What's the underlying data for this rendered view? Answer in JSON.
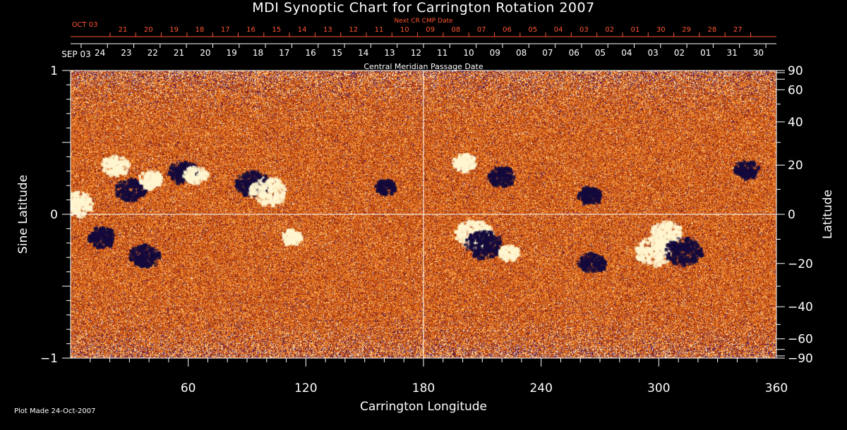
{
  "title": "MDI Synoptic Chart for Carrington Rotation 2007",
  "footer_note": "Plot Made 24-Oct-2007",
  "colors": {
    "background": "#000000",
    "axis": "#ffffff",
    "next_cr_axis": "#ff5533",
    "map_base": "#c2410c",
    "map_positive": "#fff6d0",
    "map_negative": "#140a3c"
  },
  "chart_data": {
    "type": "heatmap",
    "xlabel": "Carrington Longitude",
    "ylabel_left": "Sine Latitude",
    "ylabel_right": "Latitude",
    "xlim": [
      0,
      360
    ],
    "ylim": [
      -1,
      1
    ],
    "x_ticks": [
      "60",
      "120",
      "180",
      "240",
      "300",
      "360"
    ],
    "y_ticks_left": [
      "1",
      "0",
      "−1"
    ],
    "y_ticks_right": [
      "90",
      "60",
      "40",
      "20",
      "0",
      "−20",
      "−40",
      "−60",
      "−90"
    ],
    "top_axis_label": "Central Meridian Passage Date",
    "top_axis_month": "SEP 03",
    "top_axis_dates": [
      "24",
      "23",
      "22",
      "21",
      "20",
      "19",
      "18",
      "17",
      "16",
      "15",
      "14",
      "13",
      "12",
      "11",
      "10",
      "09",
      "08",
      "07",
      "06",
      "05",
      "04",
      "03",
      "02",
      "01",
      "31",
      "30"
    ],
    "next_cr_label": "Next CR CMP Date",
    "next_cr_month": "OCT 03",
    "next_cr_dates": [
      "21",
      "20",
      "19",
      "18",
      "17",
      "16",
      "15",
      "14",
      "13",
      "12",
      "11",
      "10",
      "09",
      "08",
      "07",
      "06",
      "05",
      "04",
      "03",
      "02",
      "01",
      "30",
      "29",
      "28",
      "27"
    ],
    "reference_lines": {
      "longitude": 180,
      "sine_latitude": 0
    },
    "active_regions": [
      {
        "lon": 2,
        "sinlat": 0.08,
        "polarity": "positive",
        "strength": 0.9
      },
      {
        "lon": 15,
        "sinlat": -0.15,
        "polarity": "negative",
        "strength": 0.7
      },
      {
        "lon": 22,
        "sinlat": 0.35,
        "polarity": "positive",
        "strength": 0.7
      },
      {
        "lon": 30,
        "sinlat": 0.18,
        "polarity": "negative",
        "strength": 0.8
      },
      {
        "lon": 37,
        "sinlat": -0.28,
        "polarity": "negative",
        "strength": 0.8
      },
      {
        "lon": 40,
        "sinlat": 0.25,
        "polarity": "positive",
        "strength": 0.6
      },
      {
        "lon": 57,
        "sinlat": 0.3,
        "polarity": "negative",
        "strength": 0.8
      },
      {
        "lon": 63,
        "sinlat": 0.28,
        "polarity": "positive",
        "strength": 0.6
      },
      {
        "lon": 92,
        "sinlat": 0.22,
        "polarity": "negative",
        "strength": 0.9
      },
      {
        "lon": 100,
        "sinlat": 0.17,
        "polarity": "positive",
        "strength": 1.0
      },
      {
        "lon": 112,
        "sinlat": -0.15,
        "polarity": "positive",
        "strength": 0.5
      },
      {
        "lon": 160,
        "sinlat": 0.2,
        "polarity": "negative",
        "strength": 0.5
      },
      {
        "lon": 200,
        "sinlat": 0.37,
        "polarity": "positive",
        "strength": 0.6
      },
      {
        "lon": 205,
        "sinlat": -0.13,
        "polarity": "positive",
        "strength": 1.0
      },
      {
        "lon": 210,
        "sinlat": -0.2,
        "polarity": "negative",
        "strength": 1.0
      },
      {
        "lon": 219,
        "sinlat": 0.27,
        "polarity": "negative",
        "strength": 0.7
      },
      {
        "lon": 223,
        "sinlat": -0.26,
        "polarity": "positive",
        "strength": 0.5
      },
      {
        "lon": 264,
        "sinlat": 0.14,
        "polarity": "negative",
        "strength": 0.6
      },
      {
        "lon": 265,
        "sinlat": -0.33,
        "polarity": "negative",
        "strength": 0.7
      },
      {
        "lon": 297,
        "sinlat": -0.25,
        "polarity": "positive",
        "strength": 1.0
      },
      {
        "lon": 303,
        "sinlat": -0.12,
        "polarity": "positive",
        "strength": 0.8
      },
      {
        "lon": 312,
        "sinlat": -0.25,
        "polarity": "negative",
        "strength": 1.0
      },
      {
        "lon": 344,
        "sinlat": 0.32,
        "polarity": "negative",
        "strength": 0.6
      }
    ]
  }
}
